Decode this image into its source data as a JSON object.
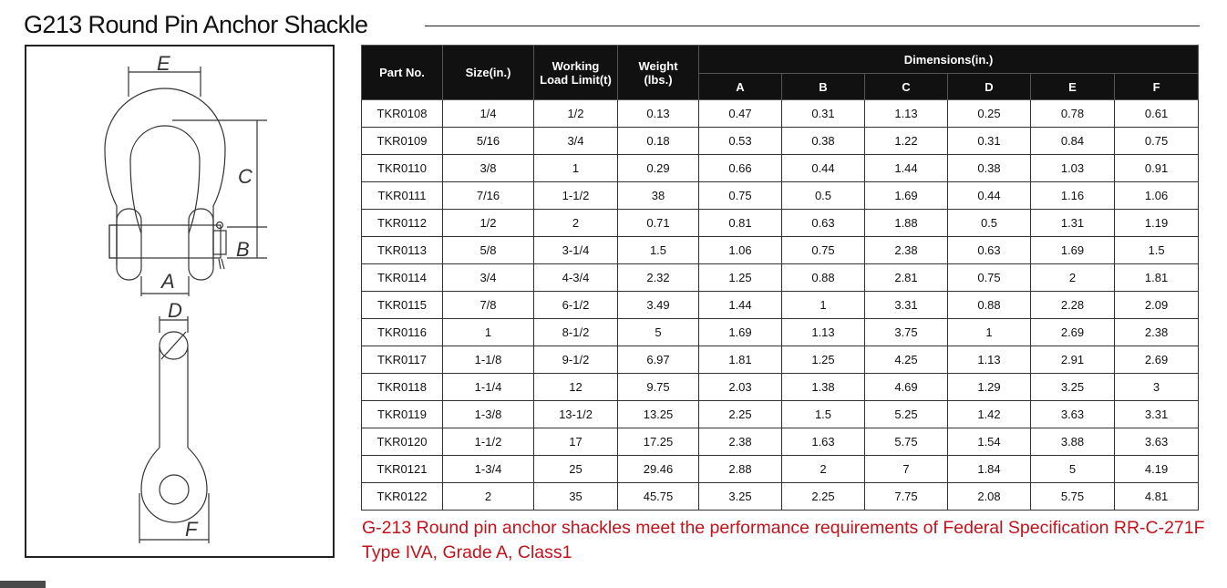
{
  "page": {
    "title": "G213 Round Pin Anchor Shackle",
    "note": "G-213 Round pin anchor shackles meet the performance requirements of Federal Specification RR-C-271F Type IVA, Grade A, Class1"
  },
  "diagram": {
    "labels": {
      "E": "E",
      "C": "C",
      "B": "B",
      "A": "A",
      "D": "D",
      "F": "F"
    }
  },
  "table": {
    "headers": {
      "part_no": "Part No.",
      "size": "Size(in.)",
      "wll_line1": "Working",
      "wll_line2": "Load Limit(t)",
      "weight_line1": "Weight",
      "weight_line2": "(lbs.)",
      "dimensions": "Dimensions(in.)",
      "dims": [
        "A",
        "B",
        "C",
        "D",
        "E",
        "F"
      ]
    },
    "rows": [
      [
        "TKR0108",
        "1/4",
        "1/2",
        "0.13",
        "0.47",
        "0.31",
        "1.13",
        "0.25",
        "0.78",
        "0.61"
      ],
      [
        "TKR0109",
        "5/16",
        "3/4",
        "0.18",
        "0.53",
        "0.38",
        "1.22",
        "0.31",
        "0.84",
        "0.75"
      ],
      [
        "TKR0110",
        "3/8",
        "1",
        "0.29",
        "0.66",
        "0.44",
        "1.44",
        "0.38",
        "1.03",
        "0.91"
      ],
      [
        "TKR0111",
        "7/16",
        "1-1/2",
        "38",
        "0.75",
        "0.5",
        "1.69",
        "0.44",
        "1.16",
        "1.06"
      ],
      [
        "TKR0112",
        "1/2",
        "2",
        "0.71",
        "0.81",
        "0.63",
        "1.88",
        "0.5",
        "1.31",
        "1.19"
      ],
      [
        "TKR0113",
        "5/8",
        "3-1/4",
        "1.5",
        "1.06",
        "0.75",
        "2.38",
        "0.63",
        "1.69",
        "1.5"
      ],
      [
        "TKR0114",
        "3/4",
        "4-3/4",
        "2.32",
        "1.25",
        "0.88",
        "2.81",
        "0.75",
        "2",
        "1.81"
      ],
      [
        "TKR0115",
        "7/8",
        "6-1/2",
        "3.49",
        "1.44",
        "1",
        "3.31",
        "0.88",
        "2.28",
        "2.09"
      ],
      [
        "TKR0116",
        "1",
        "8-1/2",
        "5",
        "1.69",
        "1.13",
        "3.75",
        "1",
        "2.69",
        "2.38"
      ],
      [
        "TKR0117",
        "1-1/8",
        "9-1/2",
        "6.97",
        "1.81",
        "1.25",
        "4.25",
        "1.13",
        "2.91",
        "2.69"
      ],
      [
        "TKR0118",
        "1-1/4",
        "12",
        "9.75",
        "2.03",
        "1.38",
        "4.69",
        "1.29",
        "3.25",
        "3"
      ],
      [
        "TKR0119",
        "1-3/8",
        "13-1/2",
        "13.25",
        "2.25",
        "1.5",
        "5.25",
        "1.42",
        "3.63",
        "3.31"
      ],
      [
        "TKR0120",
        "1-1/2",
        "17",
        "17.25",
        "2.38",
        "1.63",
        "5.75",
        "1.54",
        "3.88",
        "3.63"
      ],
      [
        "TKR0121",
        "1-3/4",
        "25",
        "29.46",
        "2.88",
        "2",
        "7",
        "1.84",
        "5",
        "4.19"
      ],
      [
        "TKR0122",
        "2",
        "35",
        "45.75",
        "3.25",
        "2.25",
        "7.75",
        "2.08",
        "5.75",
        "4.81"
      ]
    ]
  }
}
